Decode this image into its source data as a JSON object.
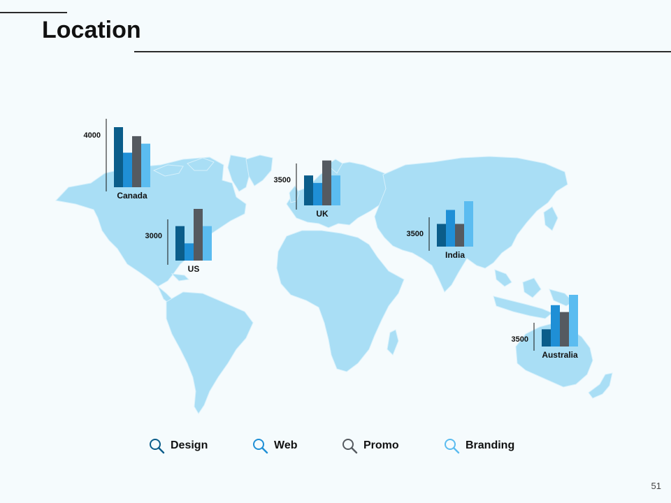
{
  "title": "Location",
  "page_number": "51",
  "colors": {
    "map_fill": "#a9def5",
    "map_stroke": "#d6f0fb",
    "axis": "#111111"
  },
  "legend": [
    {
      "label": "Design",
      "color": "#0b5d8a",
      "icon": "magnifier-icon"
    },
    {
      "label": "Web",
      "color": "#1f8fd6",
      "icon": "magnifier-icon"
    },
    {
      "label": "Promo",
      "color": "#555a60",
      "icon": "magnifier-icon"
    },
    {
      "label": "Branding",
      "color": "#5bbcf0",
      "icon": "magnifier-icon"
    }
  ],
  "chart_data": {
    "type": "bar",
    "series_names": [
      "Design",
      "Web",
      "Promo",
      "Branding"
    ],
    "series_colors": [
      "#0b5d8a",
      "#1f8fd6",
      "#555a60",
      "#5bbcf0"
    ],
    "regions": [
      {
        "country": "Canada",
        "axis_label": "4000",
        "values": [
          4000,
          2300,
          3400,
          2900
        ]
      },
      {
        "country": "UK",
        "axis_label": "3500",
        "values": [
          2000,
          1500,
          3000,
          2000
        ]
      },
      {
        "country": "US",
        "axis_label": "3000",
        "values": [
          2000,
          1000,
          3000,
          2000
        ]
      },
      {
        "country": "India",
        "axis_label": "3500",
        "values": [
          1300,
          2100,
          1300,
          2600
        ]
      },
      {
        "country": "Australia",
        "axis_label": "3500",
        "values": [
          1000,
          2400,
          2000,
          3000
        ]
      }
    ]
  }
}
